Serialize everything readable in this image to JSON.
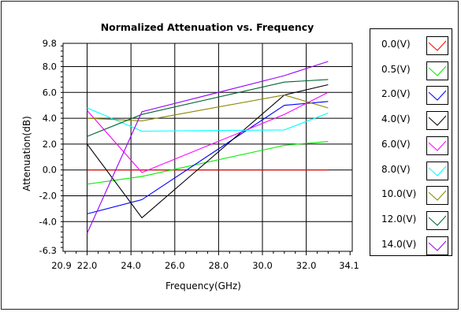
{
  "chart_data": {
    "type": "line",
    "title": "Normalized Attenuation vs. Frequency",
    "xlabel": "Frequency(GHz)",
    "ylabel": "Attenuation(dB)",
    "xlim": [
      20.9,
      34.1
    ],
    "ylim": [
      -6.3,
      9.8
    ],
    "x_ticks": [
      22.0,
      24.0,
      26.0,
      28.0,
      30.0,
      32.0
    ],
    "x_tick_labels": [
      "22.0",
      "24.0",
      "26.0",
      "28.0",
      "30.0",
      "32.0"
    ],
    "x_end_labels": [
      "20.9",
      "34.1"
    ],
    "y_ticks": [
      8.0,
      6.0,
      4.0,
      2.0,
      0.0,
      -2.0,
      -4.0
    ],
    "y_tick_labels": [
      "8.0",
      "6.0",
      "4.0",
      "2.0",
      "0.0",
      "-2.0",
      "-4.0"
    ],
    "y_end_labels": [
      "9.8",
      "-6.3"
    ],
    "grid": true,
    "legend_position": "right",
    "x": [
      22.0,
      24.5,
      31.0,
      33.0
    ],
    "series": [
      {
        "name": "0.0(V)",
        "color": "#ff0000",
        "values": [
          0.0,
          0.0,
          0.0,
          0.0
        ]
      },
      {
        "name": "0.5(V)",
        "color": "#00ee00",
        "values": [
          -1.1,
          -0.5,
          1.9,
          2.2
        ]
      },
      {
        "name": "2.0(V)",
        "color": "#0000ff",
        "values": [
          -3.4,
          -2.3,
          5.0,
          5.3
        ]
      },
      {
        "name": "4.0(V)",
        "color": "#000000",
        "values": [
          2.0,
          -3.7,
          5.8,
          6.6
        ]
      },
      {
        "name": "6.0(V)",
        "color": "#ff00ff",
        "values": [
          4.6,
          -0.2,
          4.3,
          6.0
        ]
      },
      {
        "name": "8.0(V)",
        "color": "#00ffff",
        "values": [
          4.8,
          3.0,
          3.1,
          4.4
        ]
      },
      {
        "name": "10.0(V)",
        "color": "#888800",
        "values": [
          4.0,
          3.8,
          5.8,
          4.8
        ]
      },
      {
        "name": "12.0(V)",
        "color": "#006633",
        "values": [
          2.6,
          4.3,
          6.8,
          7.0
        ]
      },
      {
        "name": "14.0(V)",
        "color": "#9900ff",
        "values": [
          -4.9,
          4.5,
          7.3,
          8.4
        ]
      }
    ]
  }
}
